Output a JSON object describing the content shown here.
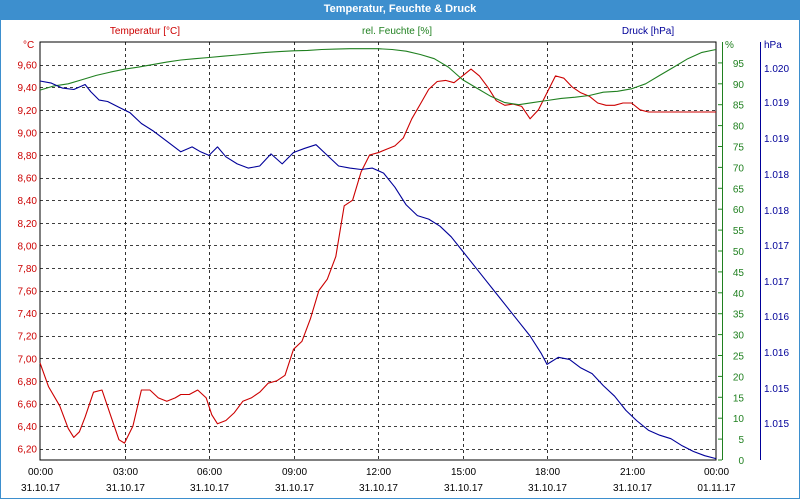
{
  "window": {
    "title": "Temperatur, Feuchte & Druck"
  },
  "colors": {
    "titlebar": "#3d8fce",
    "temperature": "#cc0000",
    "humidity": "#208020",
    "pressure": "#000099",
    "grid": "#000000"
  },
  "chart_data": {
    "type": "line",
    "grid": true,
    "x_ticks": [
      {
        "time": "00:00",
        "date": "31.10.17"
      },
      {
        "time": "03:00",
        "date": "31.10.17"
      },
      {
        "time": "06:00",
        "date": "31.10.17"
      },
      {
        "time": "09:00",
        "date": "31.10.17"
      },
      {
        "time": "12:00",
        "date": "31.10.17"
      },
      {
        "time": "15:00",
        "date": "31.10.17"
      },
      {
        "time": "18:00",
        "date": "31.10.17"
      },
      {
        "time": "21:00",
        "date": "31.10.17"
      },
      {
        "time": "00:00",
        "date": "01.11.17"
      }
    ],
    "x_range_hours": [
      0,
      24
    ],
    "axes": {
      "temperature": {
        "title": "Temperatur [°C]",
        "unit": "°C",
        "ylim": [
          6.1,
          9.8
        ],
        "ticks": [
          "6,20",
          "6,40",
          "6,60",
          "6,80",
          "7,00",
          "7,20",
          "7,40",
          "7,60",
          "7,80",
          "8,00",
          "8,20",
          "8,40",
          "8,60",
          "8,80",
          "9,00",
          "9,20",
          "9,40",
          "9,60"
        ]
      },
      "humidity": {
        "title": "rel. Feuchte [%]",
        "unit": "%",
        "ylim": [
          0,
          100
        ],
        "ticks": [
          "0",
          "5",
          "10",
          "15",
          "20",
          "25",
          "30",
          "35",
          "40",
          "45",
          "50",
          "55",
          "60",
          "65",
          "70",
          "75",
          "80",
          "85",
          "90",
          "95"
        ]
      },
      "pressure": {
        "title": "Druck [hPa]",
        "unit": "hPa",
        "ylim": [
          1014.8,
          1020.7
        ],
        "ticks": [
          "1.015",
          "1.015",
          "1.016",
          "1.016",
          "1.017",
          "1.017",
          "1.018",
          "1.018",
          "1.019",
          "1.019",
          "1.020"
        ]
      }
    },
    "series": [
      {
        "name": "Temperatur [°C]",
        "axis": "temperature",
        "x": [
          0,
          0.3,
          0.7,
          1.0,
          1.2,
          1.4,
          1.6,
          1.9,
          2.2,
          2.5,
          2.8,
          3.0,
          3.3,
          3.6,
          3.9,
          4.2,
          4.5,
          4.8,
          5.0,
          5.3,
          5.6,
          5.9,
          6.1,
          6.3,
          6.6,
          6.9,
          7.2,
          7.5,
          7.8,
          8.1,
          8.4,
          8.7,
          9.0,
          9.3,
          9.6,
          9.9,
          10.2,
          10.5,
          10.8,
          11.1,
          11.4,
          11.7,
          12.0,
          12.3,
          12.6,
          12.9,
          13.2,
          13.5,
          13.8,
          14.1,
          14.4,
          14.7,
          15.0,
          15.3,
          15.6,
          15.9,
          16.2,
          16.5,
          16.8,
          17.1,
          17.4,
          17.7,
          18.0,
          18.3,
          18.6,
          18.9,
          19.2,
          19.5,
          19.8,
          20.1,
          20.4,
          20.7,
          21.0,
          21.3,
          21.6,
          21.9,
          22.2,
          22.5,
          22.8,
          23.1,
          23.4,
          23.7,
          24.0
        ],
        "values": [
          6.96,
          6.75,
          6.58,
          6.38,
          6.3,
          6.35,
          6.48,
          6.7,
          6.72,
          6.5,
          6.28,
          6.25,
          6.4,
          6.72,
          6.72,
          6.65,
          6.62,
          6.65,
          6.68,
          6.68,
          6.72,
          6.65,
          6.5,
          6.42,
          6.45,
          6.52,
          6.62,
          6.65,
          6.7,
          6.78,
          6.8,
          6.85,
          7.08,
          7.15,
          7.35,
          7.6,
          7.7,
          7.9,
          8.35,
          8.4,
          8.65,
          8.8,
          8.82,
          8.85,
          8.88,
          8.95,
          9.12,
          9.25,
          9.38,
          9.45,
          9.46,
          9.44,
          9.5,
          9.56,
          9.5,
          9.4,
          9.28,
          9.24,
          9.25,
          9.23,
          9.12,
          9.2,
          9.35,
          9.5,
          9.48,
          9.4,
          9.35,
          9.32,
          9.26,
          9.24,
          9.24,
          9.26,
          9.26,
          9.2,
          9.18,
          9.18,
          9.18,
          9.18,
          9.18,
          9.18,
          9.18,
          9.18,
          9.18
        ]
      },
      {
        "name": "rel. Feuchte [%]",
        "axis": "humidity",
        "x": [
          0,
          0.5,
          1.0,
          1.5,
          2.0,
          2.5,
          3.0,
          3.5,
          4.0,
          4.5,
          5.0,
          5.5,
          6.0,
          6.5,
          7.0,
          7.5,
          8.0,
          8.5,
          9.0,
          9.5,
          10.0,
          10.5,
          11.0,
          11.5,
          12.0,
          12.5,
          13.0,
          13.5,
          14.0,
          14.5,
          15.0,
          15.5,
          16.0,
          16.5,
          17.0,
          17.5,
          18.0,
          18.5,
          19.0,
          19.5,
          20.0,
          20.5,
          21.0,
          21.5,
          22.0,
          22.5,
          23.0,
          23.5,
          24.0
        ],
        "values": [
          88.5,
          89.5,
          90.0,
          91.0,
          92.0,
          92.8,
          93.5,
          94.0,
          94.6,
          95.2,
          95.7,
          96.0,
          96.3,
          96.6,
          96.9,
          97.2,
          97.5,
          97.7,
          97.9,
          98.0,
          98.2,
          98.3,
          98.4,
          98.4,
          98.4,
          98.2,
          97.8,
          97.0,
          96.0,
          94.0,
          91.0,
          89.0,
          87.0,
          85.5,
          85.0,
          85.5,
          86.0,
          86.5,
          86.8,
          87.2,
          88.0,
          88.2,
          88.8,
          90.0,
          92.0,
          94.0,
          96.0,
          97.5,
          98.2
        ]
      },
      {
        "name": "Druck [hPa]",
        "axis": "pressure",
        "x": [
          0,
          0.4,
          0.8,
          1.2,
          1.6,
          1.8,
          2.1,
          2.4,
          2.8,
          3.2,
          3.6,
          4.0,
          4.5,
          5.0,
          5.4,
          5.7,
          6.0,
          6.3,
          6.6,
          7.0,
          7.4,
          7.8,
          8.2,
          8.6,
          9.0,
          9.4,
          9.8,
          10.2,
          10.6,
          11.0,
          11.4,
          11.8,
          12.2,
          12.6,
          13.0,
          13.4,
          13.8,
          14.2,
          14.6,
          15.0,
          15.4,
          15.8,
          16.2,
          16.6,
          17.0,
          17.4,
          17.8,
          18.0,
          18.4,
          18.8,
          19.2,
          19.6,
          20.0,
          20.4,
          20.8,
          21.2,
          21.6,
          22.0,
          22.4,
          22.8,
          23.2,
          23.6,
          24.0
        ],
        "values": [
          1020.15,
          1020.12,
          1020.05,
          1020.03,
          1020.1,
          1020.0,
          1019.88,
          1019.86,
          1019.78,
          1019.7,
          1019.55,
          1019.45,
          1019.3,
          1019.15,
          1019.22,
          1019.15,
          1019.1,
          1019.22,
          1019.08,
          1018.98,
          1018.92,
          1018.95,
          1019.12,
          1018.98,
          1019.14,
          1019.2,
          1019.25,
          1019.1,
          1018.95,
          1018.92,
          1018.9,
          1018.92,
          1018.85,
          1018.65,
          1018.4,
          1018.25,
          1018.2,
          1018.1,
          1017.95,
          1017.75,
          1017.55,
          1017.35,
          1017.15,
          1016.95,
          1016.75,
          1016.55,
          1016.3,
          1016.15,
          1016.25,
          1016.22,
          1016.1,
          1016.02,
          1015.85,
          1015.7,
          1015.5,
          1015.35,
          1015.22,
          1015.15,
          1015.1,
          1015.0,
          1014.92,
          1014.86,
          1014.82
        ]
      }
    ]
  }
}
